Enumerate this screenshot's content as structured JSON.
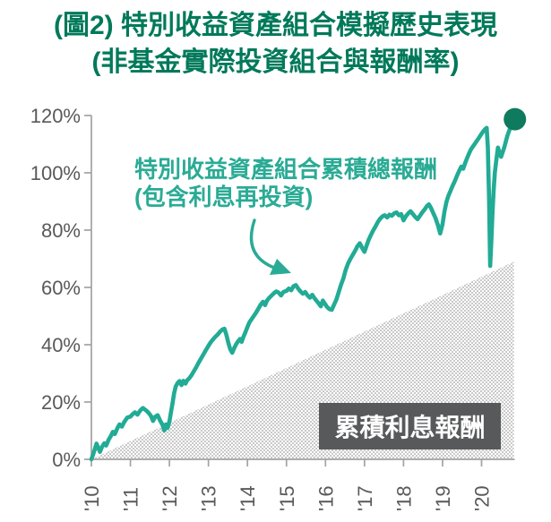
{
  "title": {
    "line1": "(圖2) 特別收益資產組合模擬歷史表現",
    "line2": "(非基金實際投資組合與報酬率)"
  },
  "annotation": {
    "line1": "特別收益資產組合累積總報酬",
    "line2": "(包含利息再投資)"
  },
  "interest_label": "累積利息報酬",
  "colors": {
    "line": "#22ab95",
    "dot": "#0e7a5e",
    "title": "#00795a",
    "annotation": "#2aab95",
    "axis": "#a3a3a3",
    "tick_text": "#595959",
    "box_bg": "#58595b",
    "box_text": "#ffffff",
    "hatch": "#c9c9c9"
  },
  "chart_data": {
    "type": "line",
    "title": "(圖2) 特別收益資產組合模擬歷史表現 (非基金實際投資組合與報酬率)",
    "xlabel": "",
    "ylabel": "",
    "xlim": [
      2010,
      2020.85
    ],
    "ylim": [
      0,
      120
    ],
    "grid": false,
    "legend_position": "none",
    "y_ticks": [
      {
        "v": 0,
        "label": "0%"
      },
      {
        "v": 20,
        "label": "20%"
      },
      {
        "v": 40,
        "label": "40%"
      },
      {
        "v": 60,
        "label": "60%"
      },
      {
        "v": 80,
        "label": "80%"
      },
      {
        "v": 100,
        "label": "100%"
      },
      {
        "v": 120,
        "label": "120%"
      }
    ],
    "x_ticks": [
      {
        "t": 2010,
        "label": "'10"
      },
      {
        "t": 2011,
        "label": "'11"
      },
      {
        "t": 2012,
        "label": "'12"
      },
      {
        "t": 2013,
        "label": "'13"
      },
      {
        "t": 2014,
        "label": "'14"
      },
      {
        "t": 2015,
        "label": "'15"
      },
      {
        "t": 2016,
        "label": "'16"
      },
      {
        "t": 2017,
        "label": "'17"
      },
      {
        "t": 2018,
        "label": "'18"
      },
      {
        "t": 2019,
        "label": "'19"
      },
      {
        "t": 2020,
        "label": "'20"
      }
    ],
    "series": [
      {
        "name": "特別收益資產組合累積總報酬(包含利息再投資)",
        "unit": "%",
        "points": [
          [
            2010.0,
            0
          ],
          [
            2010.04,
            1.5
          ],
          [
            2010.08,
            3.2
          ],
          [
            2010.13,
            5.5
          ],
          [
            2010.17,
            4.2
          ],
          [
            2010.22,
            2.6
          ],
          [
            2010.27,
            4.3
          ],
          [
            2010.33,
            5.6
          ],
          [
            2010.38,
            4.8
          ],
          [
            2010.44,
            6.8
          ],
          [
            2010.5,
            8.2
          ],
          [
            2010.55,
            9.6
          ],
          [
            2010.6,
            8.8
          ],
          [
            2010.67,
            11
          ],
          [
            2010.72,
            12.2
          ],
          [
            2010.78,
            11.4
          ],
          [
            2010.84,
            13
          ],
          [
            2010.92,
            14.6
          ],
          [
            2011.0,
            14.9
          ],
          [
            2011.06,
            15.8
          ],
          [
            2011.12,
            16.4
          ],
          [
            2011.18,
            15.6
          ],
          [
            2011.25,
            17
          ],
          [
            2011.32,
            17.9
          ],
          [
            2011.4,
            17.1
          ],
          [
            2011.47,
            16.2
          ],
          [
            2011.53,
            15.1
          ],
          [
            2011.58,
            13.4
          ],
          [
            2011.64,
            14.9
          ],
          [
            2011.7,
            15.4
          ],
          [
            2011.76,
            13.6
          ],
          [
            2011.82,
            12.1
          ],
          [
            2011.87,
            10.1
          ],
          [
            2011.91,
            12.2
          ],
          [
            2011.95,
            10.9
          ],
          [
            2012.0,
            13.2
          ],
          [
            2012.04,
            16.4
          ],
          [
            2012.08,
            19.6
          ],
          [
            2012.12,
            23
          ],
          [
            2012.16,
            25.4
          ],
          [
            2012.21,
            26.6
          ],
          [
            2012.26,
            27.3
          ],
          [
            2012.31,
            25.9
          ],
          [
            2012.36,
            27.4
          ],
          [
            2012.41,
            26.4
          ],
          [
            2012.46,
            27.7
          ],
          [
            2012.51,
            28.3
          ],
          [
            2012.57,
            29.4
          ],
          [
            2012.63,
            30.8
          ],
          [
            2012.69,
            32.2
          ],
          [
            2012.75,
            33.8
          ],
          [
            2012.81,
            35.2
          ],
          [
            2012.87,
            36.6
          ],
          [
            2012.93,
            38
          ],
          [
            2013.0,
            39.6
          ],
          [
            2013.06,
            40.9
          ],
          [
            2013.12,
            41.9
          ],
          [
            2013.18,
            42.8
          ],
          [
            2013.24,
            43.6
          ],
          [
            2013.3,
            44.6
          ],
          [
            2013.36,
            45.3
          ],
          [
            2013.41,
            45.6
          ],
          [
            2013.46,
            43.4
          ],
          [
            2013.51,
            40.6
          ],
          [
            2013.56,
            38.4
          ],
          [
            2013.61,
            37.2
          ],
          [
            2013.66,
            38.8
          ],
          [
            2013.71,
            40.2
          ],
          [
            2013.76,
            41.2
          ],
          [
            2013.81,
            42
          ],
          [
            2013.85,
            41
          ],
          [
            2013.9,
            42.8
          ],
          [
            2013.95,
            44.4
          ],
          [
            2014.0,
            46.2
          ],
          [
            2014.05,
            47.8
          ],
          [
            2014.1,
            48.8
          ],
          [
            2014.16,
            50
          ],
          [
            2014.22,
            51.2
          ],
          [
            2014.28,
            52.6
          ],
          [
            2014.34,
            54
          ],
          [
            2014.4,
            55
          ],
          [
            2014.45,
            53.8
          ],
          [
            2014.5,
            55.4
          ],
          [
            2014.56,
            56.4
          ],
          [
            2014.62,
            57.2
          ],
          [
            2014.68,
            58
          ],
          [
            2014.74,
            58.6
          ],
          [
            2014.8,
            58.2
          ],
          [
            2014.86,
            57.2
          ],
          [
            2014.92,
            58.4
          ],
          [
            2015.0,
            58.8
          ],
          [
            2015.06,
            59.6
          ],
          [
            2015.12,
            59
          ],
          [
            2015.18,
            60.4
          ],
          [
            2015.24,
            60.8
          ],
          [
            2015.3,
            59.6
          ],
          [
            2015.36,
            58.6
          ],
          [
            2015.42,
            57.8
          ],
          [
            2015.48,
            58.4
          ],
          [
            2015.54,
            57.2
          ],
          [
            2015.6,
            56.4
          ],
          [
            2015.66,
            57.4
          ],
          [
            2015.72,
            56.2
          ],
          [
            2015.78,
            55.2
          ],
          [
            2015.84,
            54.2
          ],
          [
            2015.88,
            53.4
          ],
          [
            2015.93,
            55.4
          ],
          [
            2015.98,
            54.4
          ],
          [
            2016.04,
            53.2
          ],
          [
            2016.1,
            52.4
          ],
          [
            2016.16,
            52.2
          ],
          [
            2016.22,
            54
          ],
          [
            2016.28,
            55.8
          ],
          [
            2016.34,
            58.4
          ],
          [
            2016.4,
            61
          ],
          [
            2016.46,
            63.2
          ],
          [
            2016.52,
            66.2
          ],
          [
            2016.58,
            68.4
          ],
          [
            2016.64,
            70
          ],
          [
            2016.7,
            71.4
          ],
          [
            2016.76,
            72.8
          ],
          [
            2016.82,
            74.4
          ],
          [
            2016.88,
            75.4
          ],
          [
            2016.94,
            73.8
          ],
          [
            2017.0,
            72.4
          ],
          [
            2017.05,
            74.4
          ],
          [
            2017.1,
            76.4
          ],
          [
            2017.16,
            78.2
          ],
          [
            2017.22,
            79.8
          ],
          [
            2017.28,
            81.2
          ],
          [
            2017.34,
            82.8
          ],
          [
            2017.4,
            84
          ],
          [
            2017.46,
            84.8
          ],
          [
            2017.52,
            85.2
          ],
          [
            2017.58,
            84.4
          ],
          [
            2017.64,
            85.4
          ],
          [
            2017.7,
            85
          ],
          [
            2017.76,
            85.8
          ],
          [
            2017.82,
            86.2
          ],
          [
            2017.88,
            85.2
          ],
          [
            2017.94,
            85.6
          ],
          [
            2018.0,
            83.4
          ],
          [
            2018.06,
            84.8
          ],
          [
            2018.12,
            85.8
          ],
          [
            2018.18,
            86.6
          ],
          [
            2018.24,
            85.6
          ],
          [
            2018.3,
            84.6
          ],
          [
            2018.36,
            83.8
          ],
          [
            2018.42,
            85
          ],
          [
            2018.48,
            86.2
          ],
          [
            2018.54,
            87.2
          ],
          [
            2018.6,
            88.4
          ],
          [
            2018.65,
            89
          ],
          [
            2018.7,
            87.8
          ],
          [
            2018.76,
            86
          ],
          [
            2018.82,
            84.2
          ],
          [
            2018.88,
            81.8
          ],
          [
            2018.94,
            78.8
          ],
          [
            2019.0,
            82
          ],
          [
            2019.05,
            86.5
          ],
          [
            2019.1,
            89.8
          ],
          [
            2019.15,
            92
          ],
          [
            2019.2,
            93.6
          ],
          [
            2019.25,
            95.2
          ],
          [
            2019.31,
            97
          ],
          [
            2019.37,
            99
          ],
          [
            2019.43,
            100.8
          ],
          [
            2019.48,
            102.2
          ],
          [
            2019.53,
            101.4
          ],
          [
            2019.58,
            103.4
          ],
          [
            2019.63,
            105.2
          ],
          [
            2019.68,
            106.8
          ],
          [
            2019.73,
            108.2
          ],
          [
            2019.78,
            109.2
          ],
          [
            2019.83,
            110.2
          ],
          [
            2019.88,
            111.2
          ],
          [
            2019.93,
            112.2
          ],
          [
            2019.98,
            113.2
          ],
          [
            2020.04,
            114.4
          ],
          [
            2020.09,
            115.2
          ],
          [
            2020.13,
            115.7
          ],
          [
            2020.16,
            109
          ],
          [
            2020.19,
            92
          ],
          [
            2020.22,
            67.5
          ],
          [
            2020.25,
            76
          ],
          [
            2020.28,
            86
          ],
          [
            2020.31,
            94
          ],
          [
            2020.34,
            100
          ],
          [
            2020.38,
            104.5
          ],
          [
            2020.42,
            108.8
          ],
          [
            2020.46,
            107
          ],
          [
            2020.5,
            105.6
          ],
          [
            2020.54,
            107.2
          ],
          [
            2020.58,
            108.8
          ],
          [
            2020.62,
            110.8
          ],
          [
            2020.66,
            112.8
          ],
          [
            2020.7,
            114.4
          ],
          [
            2020.74,
            115.8
          ],
          [
            2020.78,
            117.2
          ],
          [
            2020.82,
            118.4
          ]
        ]
      }
    ],
    "interest_area": {
      "name": "累積利息報酬",
      "shape": "triangle-hatched",
      "points": [
        [
          2010.0,
          0
        ],
        [
          2020.83,
          69
        ]
      ]
    },
    "end_marker": {
      "t": 2020.82,
      "v": 118.4
    }
  }
}
